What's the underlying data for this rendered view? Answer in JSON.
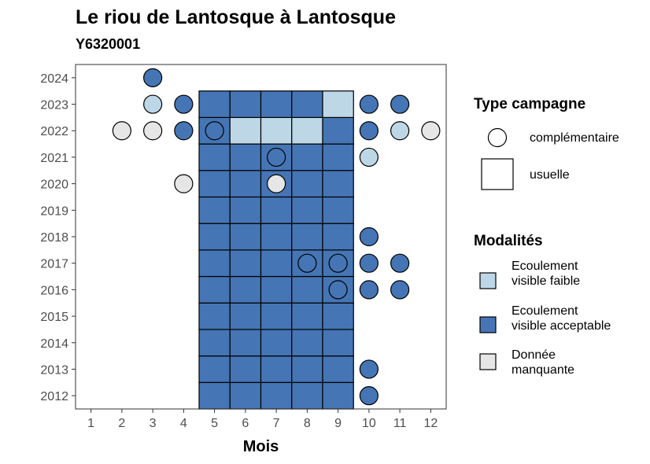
{
  "chart_data": {
    "type": "heatmap",
    "title": "Le riou de Lantosque à Lantosque",
    "subtitle": "Y6320001",
    "xlabel": "Mois",
    "ylabel": "",
    "x_ticks": [
      1,
      2,
      3,
      4,
      5,
      6,
      7,
      8,
      9,
      10,
      11,
      12
    ],
    "y_ticks": [
      2012,
      2013,
      2014,
      2015,
      2016,
      2017,
      2018,
      2019,
      2020,
      2021,
      2022,
      2023,
      2024
    ],
    "xlim": [
      0.5,
      12.5
    ],
    "ylim": [
      2011.5,
      2024.5
    ],
    "colors": {
      "Ecoulement visible faible": "#bdd7e7",
      "Ecoulement visible acceptable": "#4575b4",
      "Donnée manquante": "#e6e6e6"
    },
    "usuelle": [
      {
        "x": 5,
        "y": 2012,
        "m": "Ecoulement visible acceptable"
      },
      {
        "x": 6,
        "y": 2012,
        "m": "Ecoulement visible acceptable"
      },
      {
        "x": 7,
        "y": 2012,
        "m": "Ecoulement visible acceptable"
      },
      {
        "x": 8,
        "y": 2012,
        "m": "Ecoulement visible acceptable"
      },
      {
        "x": 9,
        "y": 2012,
        "m": "Ecoulement visible acceptable"
      },
      {
        "x": 5,
        "y": 2013,
        "m": "Ecoulement visible acceptable"
      },
      {
        "x": 6,
        "y": 2013,
        "m": "Ecoulement visible acceptable"
      },
      {
        "x": 7,
        "y": 2013,
        "m": "Ecoulement visible acceptable"
      },
      {
        "x": 8,
        "y": 2013,
        "m": "Ecoulement visible acceptable"
      },
      {
        "x": 9,
        "y": 2013,
        "m": "Ecoulement visible acceptable"
      },
      {
        "x": 5,
        "y": 2014,
        "m": "Ecoulement visible acceptable"
      },
      {
        "x": 6,
        "y": 2014,
        "m": "Ecoulement visible acceptable"
      },
      {
        "x": 7,
        "y": 2014,
        "m": "Ecoulement visible acceptable"
      },
      {
        "x": 8,
        "y": 2014,
        "m": "Ecoulement visible acceptable"
      },
      {
        "x": 9,
        "y": 2014,
        "m": "Ecoulement visible acceptable"
      },
      {
        "x": 5,
        "y": 2015,
        "m": "Ecoulement visible acceptable"
      },
      {
        "x": 6,
        "y": 2015,
        "m": "Ecoulement visible acceptable"
      },
      {
        "x": 7,
        "y": 2015,
        "m": "Ecoulement visible acceptable"
      },
      {
        "x": 8,
        "y": 2015,
        "m": "Ecoulement visible acceptable"
      },
      {
        "x": 9,
        "y": 2015,
        "m": "Ecoulement visible acceptable"
      },
      {
        "x": 5,
        "y": 2016,
        "m": "Ecoulement visible acceptable"
      },
      {
        "x": 6,
        "y": 2016,
        "m": "Ecoulement visible acceptable"
      },
      {
        "x": 7,
        "y": 2016,
        "m": "Ecoulement visible acceptable"
      },
      {
        "x": 8,
        "y": 2016,
        "m": "Ecoulement visible acceptable"
      },
      {
        "x": 9,
        "y": 2016,
        "m": "Ecoulement visible acceptable"
      },
      {
        "x": 5,
        "y": 2017,
        "m": "Ecoulement visible acceptable"
      },
      {
        "x": 6,
        "y": 2017,
        "m": "Ecoulement visible acceptable"
      },
      {
        "x": 7,
        "y": 2017,
        "m": "Ecoulement visible acceptable"
      },
      {
        "x": 8,
        "y": 2017,
        "m": "Ecoulement visible acceptable"
      },
      {
        "x": 9,
        "y": 2017,
        "m": "Ecoulement visible acceptable"
      },
      {
        "x": 5,
        "y": 2018,
        "m": "Ecoulement visible acceptable"
      },
      {
        "x": 6,
        "y": 2018,
        "m": "Ecoulement visible acceptable"
      },
      {
        "x": 7,
        "y": 2018,
        "m": "Ecoulement visible acceptable"
      },
      {
        "x": 8,
        "y": 2018,
        "m": "Ecoulement visible acceptable"
      },
      {
        "x": 9,
        "y": 2018,
        "m": "Ecoulement visible acceptable"
      },
      {
        "x": 5,
        "y": 2019,
        "m": "Ecoulement visible acceptable"
      },
      {
        "x": 6,
        "y": 2019,
        "m": "Ecoulement visible acceptable"
      },
      {
        "x": 7,
        "y": 2019,
        "m": "Ecoulement visible acceptable"
      },
      {
        "x": 8,
        "y": 2019,
        "m": "Ecoulement visible acceptable"
      },
      {
        "x": 9,
        "y": 2019,
        "m": "Ecoulement visible acceptable"
      },
      {
        "x": 5,
        "y": 2020,
        "m": "Ecoulement visible acceptable"
      },
      {
        "x": 6,
        "y": 2020,
        "m": "Ecoulement visible acceptable"
      },
      {
        "x": 7,
        "y": 2020,
        "m": "Ecoulement visible acceptable"
      },
      {
        "x": 8,
        "y": 2020,
        "m": "Ecoulement visible acceptable"
      },
      {
        "x": 9,
        "y": 2020,
        "m": "Ecoulement visible acceptable"
      },
      {
        "x": 5,
        "y": 2021,
        "m": "Ecoulement visible acceptable"
      },
      {
        "x": 6,
        "y": 2021,
        "m": "Ecoulement visible acceptable"
      },
      {
        "x": 7,
        "y": 2021,
        "m": "Ecoulement visible acceptable"
      },
      {
        "x": 8,
        "y": 2021,
        "m": "Ecoulement visible acceptable"
      },
      {
        "x": 9,
        "y": 2021,
        "m": "Ecoulement visible acceptable"
      },
      {
        "x": 5,
        "y": 2022,
        "m": "Ecoulement visible acceptable"
      },
      {
        "x": 6,
        "y": 2022,
        "m": "Ecoulement visible faible"
      },
      {
        "x": 7,
        "y": 2022,
        "m": "Ecoulement visible faible"
      },
      {
        "x": 8,
        "y": 2022,
        "m": "Ecoulement visible faible"
      },
      {
        "x": 9,
        "y": 2022,
        "m": "Ecoulement visible acceptable"
      },
      {
        "x": 5,
        "y": 2023,
        "m": "Ecoulement visible acceptable"
      },
      {
        "x": 6,
        "y": 2023,
        "m": "Ecoulement visible acceptable"
      },
      {
        "x": 7,
        "y": 2023,
        "m": "Ecoulement visible acceptable"
      },
      {
        "x": 8,
        "y": 2023,
        "m": "Ecoulement visible acceptable"
      },
      {
        "x": 9,
        "y": 2023,
        "m": "Ecoulement visible faible"
      }
    ],
    "complementaire": [
      {
        "x": 3,
        "y": 2024,
        "m": "Ecoulement visible acceptable"
      },
      {
        "x": 3,
        "y": 2023,
        "m": "Ecoulement visible faible"
      },
      {
        "x": 4,
        "y": 2023,
        "m": "Ecoulement visible acceptable"
      },
      {
        "x": 10,
        "y": 2023,
        "m": "Ecoulement visible acceptable"
      },
      {
        "x": 11,
        "y": 2023,
        "m": "Ecoulement visible acceptable"
      },
      {
        "x": 2,
        "y": 2022,
        "m": "Donnée manquante"
      },
      {
        "x": 3,
        "y": 2022,
        "m": "Donnée manquante"
      },
      {
        "x": 4,
        "y": 2022,
        "m": "Ecoulement visible acceptable"
      },
      {
        "x": 5,
        "y": 2022,
        "m": "Ecoulement visible acceptable"
      },
      {
        "x": 10,
        "y": 2022,
        "m": "Ecoulement visible acceptable"
      },
      {
        "x": 11,
        "y": 2022,
        "m": "Ecoulement visible faible"
      },
      {
        "x": 12,
        "y": 2022,
        "m": "Donnée manquante"
      },
      {
        "x": 7,
        "y": 2021,
        "m": "Ecoulement visible acceptable"
      },
      {
        "x": 10,
        "y": 2021,
        "m": "Ecoulement visible faible"
      },
      {
        "x": 4,
        "y": 2020,
        "m": "Donnée manquante"
      },
      {
        "x": 7,
        "y": 2020,
        "m": "Donnée manquante"
      },
      {
        "x": 10,
        "y": 2018,
        "m": "Ecoulement visible acceptable"
      },
      {
        "x": 8,
        "y": 2017,
        "m": "Ecoulement visible acceptable"
      },
      {
        "x": 9,
        "y": 2017,
        "m": "Ecoulement visible acceptable"
      },
      {
        "x": 10,
        "y": 2017,
        "m": "Ecoulement visible acceptable"
      },
      {
        "x": 11,
        "y": 2017,
        "m": "Ecoulement visible acceptable"
      },
      {
        "x": 9,
        "y": 2016,
        "m": "Ecoulement visible acceptable"
      },
      {
        "x": 10,
        "y": 2016,
        "m": "Ecoulement visible acceptable"
      },
      {
        "x": 11,
        "y": 2016,
        "m": "Ecoulement visible acceptable"
      },
      {
        "x": 10,
        "y": 2013,
        "m": "Ecoulement visible acceptable"
      },
      {
        "x": 10,
        "y": 2012,
        "m": "Ecoulement visible acceptable"
      }
    ]
  },
  "legend": {
    "type_title": "Type campagne",
    "type_items": [
      {
        "label": "complémentaire",
        "shape": "circle"
      },
      {
        "label": "usuelle",
        "shape": "square"
      }
    ],
    "modalites_title": "Modalités",
    "modalites_items": [
      {
        "label": "Ecoulement visible faible",
        "color": "#bdd7e7"
      },
      {
        "label": "Ecoulement visible acceptable",
        "color": "#4575b4"
      },
      {
        "label": "Donnée manquante",
        "color": "#e6e6e6"
      }
    ]
  }
}
